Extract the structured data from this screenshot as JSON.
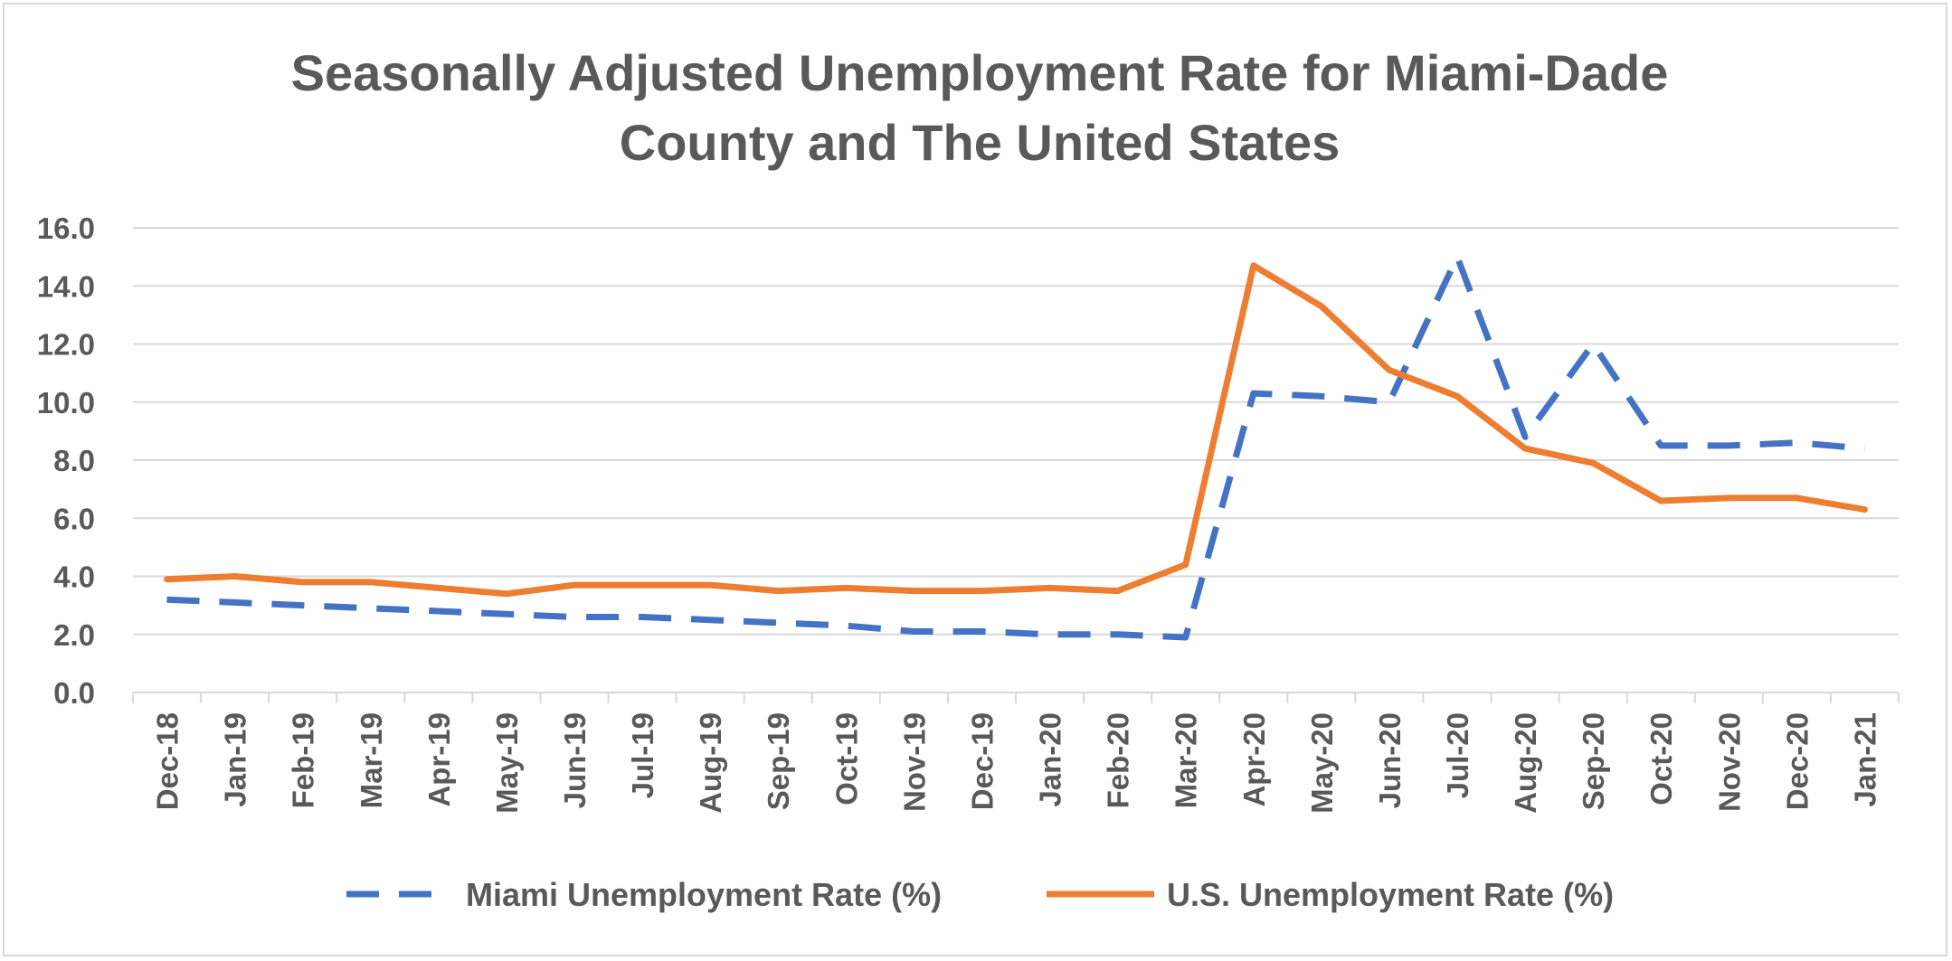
{
  "chart_data": {
    "type": "line",
    "title": "Seasonally Adjusted Unemployment Rate for Miami-Dade County and The United States",
    "title_lines": [
      "Seasonally Adjusted Unemployment Rate for Miami-Dade",
      "County and The United States"
    ],
    "xlabel": "",
    "ylabel": "",
    "ylim": [
      0,
      16
    ],
    "yticks": [
      "0.0",
      "2.0",
      "4.0",
      "6.0",
      "8.0",
      "10.0",
      "12.0",
      "14.0",
      "16.0"
    ],
    "categories": [
      "Dec-18",
      "Jan-19",
      "Feb-19",
      "Mar-19",
      "Apr-19",
      "May-19",
      "Jun-19",
      "Jul-19",
      "Aug-19",
      "Sep-19",
      "Oct-19",
      "Nov-19",
      "Dec-19",
      "Jan-20",
      "Feb-20",
      "Mar-20",
      "Apr-20",
      "May-20",
      "Jun-20",
      "Jul-20",
      "Aug-20",
      "Sep-20",
      "Oct-20",
      "Nov-20",
      "Dec-20",
      "Jan-21"
    ],
    "grid": "horizontal",
    "legend_position": "bottom",
    "series": [
      {
        "name": "Miami Unemployment Rate (%)",
        "color": "#4472C4",
        "style": "dashed",
        "values": [
          3.2,
          3.1,
          3.0,
          2.9,
          2.8,
          2.7,
          2.6,
          2.6,
          2.5,
          2.4,
          2.3,
          2.1,
          2.1,
          2.0,
          2.0,
          1.9,
          10.3,
          10.2,
          10.0,
          15.0,
          8.8,
          12.0,
          8.5,
          8.5,
          8.6,
          8.4
        ]
      },
      {
        "name": "U.S. Unemployment Rate (%)",
        "color": "#ED7D31",
        "style": "solid",
        "values": [
          3.9,
          4.0,
          3.8,
          3.8,
          3.6,
          3.4,
          3.7,
          3.7,
          3.7,
          3.5,
          3.6,
          3.5,
          3.5,
          3.6,
          3.5,
          4.4,
          14.7,
          13.3,
          11.1,
          10.2,
          8.4,
          7.9,
          6.6,
          6.7,
          6.7,
          6.3
        ]
      }
    ]
  }
}
